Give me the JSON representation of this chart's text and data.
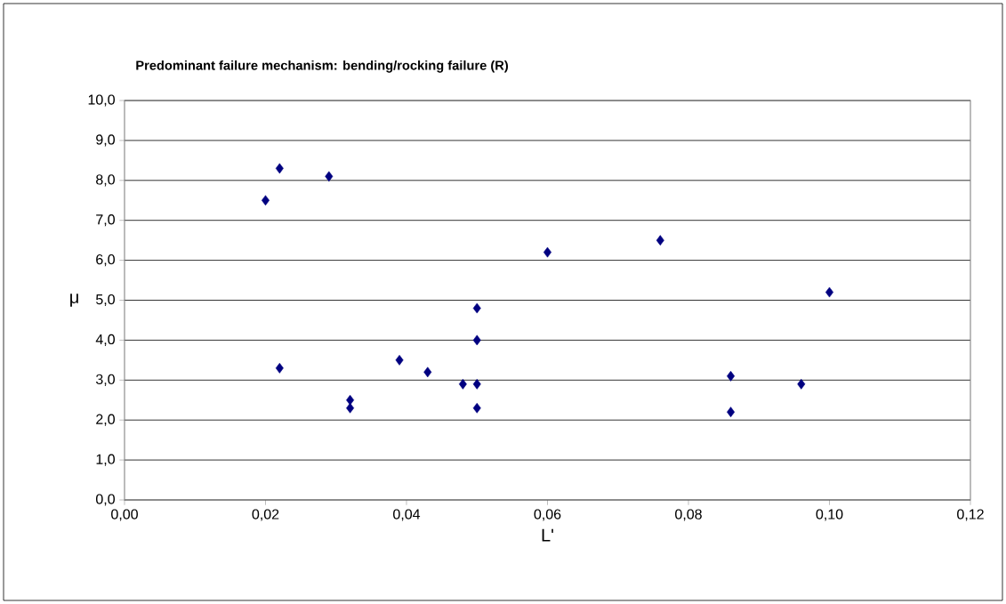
{
  "chart_data": {
    "type": "scatter",
    "title": "Predominant failure mechanism: bending/rocking failure (R)",
    "xlabel": "L'",
    "ylabel": "μ",
    "x": [
      0.02,
      0.022,
      0.029,
      0.022,
      0.032,
      0.032,
      0.039,
      0.043,
      0.048,
      0.05,
      0.05,
      0.05,
      0.05,
      0.06,
      0.076,
      0.086,
      0.086,
      0.096,
      0.1
    ],
    "series": [
      {
        "color": "#000080",
        "values": [
          7.5,
          8.3,
          8.1,
          3.3,
          2.5,
          2.3,
          3.5,
          3.2,
          2.9,
          2.9,
          2.3,
          4.0,
          4.8,
          6.2,
          6.5,
          3.1,
          2.2,
          2.9,
          5.2
        ]
      }
    ],
    "xlim": [
      0,
      0.12
    ],
    "ylim": [
      0,
      10
    ],
    "xticks": [
      {
        "value": 0,
        "label": "0,00"
      },
      {
        "value": 0.02,
        "label": "0,02"
      },
      {
        "value": 0.04,
        "label": "0,04"
      },
      {
        "value": 0.06,
        "label": "0,06"
      },
      {
        "value": 0.08,
        "label": "0,08"
      },
      {
        "value": 0.1,
        "label": "0,10"
      },
      {
        "value": 0.12,
        "label": "0,12"
      }
    ],
    "yticks": [
      {
        "value": 0,
        "label": "0,0"
      },
      {
        "value": 1,
        "label": "1,0"
      },
      {
        "value": 2,
        "label": "2,0"
      },
      {
        "value": 3,
        "label": "3,0"
      },
      {
        "value": 4,
        "label": "4,0"
      },
      {
        "value": 5,
        "label": "5,0"
      },
      {
        "value": 6,
        "label": "6,0"
      },
      {
        "value": 7,
        "label": "7,0"
      },
      {
        "value": 8,
        "label": "8,0"
      },
      {
        "value": 9,
        "label": "9,0"
      },
      {
        "value": 10,
        "label": "10,0"
      }
    ],
    "grid": "y",
    "marker": "diamond"
  }
}
